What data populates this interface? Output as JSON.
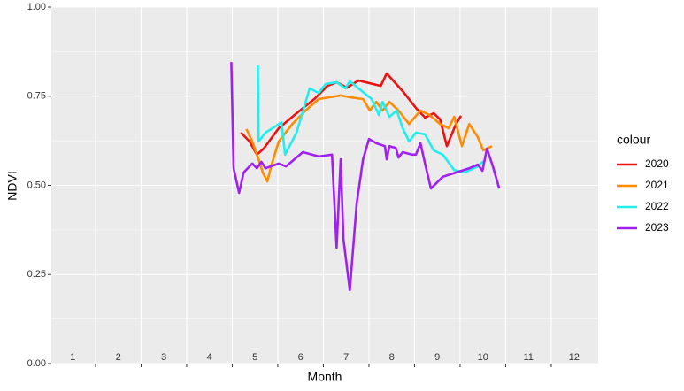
{
  "chart_data": {
    "type": "line",
    "x_label": "Month",
    "y_label": "NDVI",
    "legend_title": "colour",
    "legend_position": "right",
    "xlim": [
      0.53,
      12.53
    ],
    "ylim": [
      0,
      1
    ],
    "x_grid": [
      1.5,
      2.5,
      3.5,
      4.5,
      5.5,
      6.5,
      7.5,
      8.5,
      9.5,
      10.5,
      11.5
    ],
    "yticks": [
      {
        "value": 0,
        "label": "0.00"
      },
      {
        "value": 0.25,
        "label": "0.25"
      },
      {
        "value": 0.5,
        "label": "0.50"
      },
      {
        "value": 0.75,
        "label": "0.75"
      },
      {
        "value": 1,
        "label": "1.00"
      }
    ],
    "y_minor_grid": [
      0.125,
      0.375,
      0.625,
      0.875
    ],
    "month_labels": [
      1,
      2,
      3,
      4,
      5,
      6,
      7,
      8,
      9,
      10,
      11,
      12
    ],
    "grid": true,
    "series": [
      {
        "name": "2020",
        "color": "#ee1111",
        "x": [
          4.69,
          4.88,
          5.04,
          5.19,
          5.52,
          5.91,
          6.3,
          6.59,
          6.79,
          7.02,
          7.27,
          7.76,
          7.89,
          8.24,
          8.53,
          8.73,
          8.92,
          9.06,
          9.21,
          9.41,
          9.52
        ],
        "values": [
          0.648,
          0.623,
          0.586,
          0.603,
          0.66,
          0.702,
          0.742,
          0.779,
          0.789,
          0.774,
          0.794,
          0.779,
          0.814,
          0.764,
          0.717,
          0.69,
          0.702,
          0.685,
          0.61,
          0.672,
          0.695
        ]
      },
      {
        "name": "2021",
        "color": "#ff8c00",
        "x": [
          4.81,
          4.94,
          5.08,
          5.17,
          5.27,
          5.37,
          5.52,
          5.82,
          6.11,
          6.4,
          6.63,
          6.88,
          7.08,
          7.37,
          7.52,
          7.66,
          7.8,
          7.95,
          8.15,
          8.38,
          8.63,
          8.83,
          9.06,
          9.25,
          9.37,
          9.54,
          9.7,
          9.89,
          10.01,
          10.2
        ],
        "values": [
          0.658,
          0.623,
          0.573,
          0.536,
          0.511,
          0.561,
          0.623,
          0.672,
          0.71,
          0.742,
          0.747,
          0.752,
          0.747,
          0.742,
          0.71,
          0.734,
          0.71,
          0.734,
          0.71,
          0.672,
          0.71,
          0.697,
          0.672,
          0.66,
          0.692,
          0.61,
          0.672,
          0.635,
          0.598,
          0.61
        ]
      },
      {
        "name": "2022",
        "color": "#22eeee",
        "x": [
          5.06,
          5.08,
          5.23,
          5.47,
          5.58,
          5.66,
          5.91,
          6.2,
          6.4,
          6.55,
          6.79,
          6.98,
          7.08,
          7.27,
          7.56,
          7.72,
          7.8,
          7.95,
          8.11,
          8.24,
          8.38,
          8.53,
          8.73,
          8.92,
          9.12,
          9.37,
          9.6,
          9.89,
          10.01
        ],
        "values": [
          0.836,
          0.623,
          0.648,
          0.667,
          0.677,
          0.586,
          0.648,
          0.772,
          0.759,
          0.784,
          0.789,
          0.772,
          0.792,
          0.772,
          0.742,
          0.697,
          0.734,
          0.692,
          0.71,
          0.66,
          0.623,
          0.648,
          0.643,
          0.598,
          0.586,
          0.543,
          0.536,
          0.553,
          0.568
        ]
      },
      {
        "name": "2023",
        "color": "#a020f0",
        "x": [
          4.48,
          4.53,
          4.65,
          4.75,
          4.94,
          5.04,
          5.14,
          5.23,
          5.52,
          5.68,
          6.05,
          6.4,
          6.69,
          6.79,
          6.88,
          6.94,
          7.08,
          7.23,
          7.37,
          7.5,
          7.66,
          7.85,
          7.89,
          7.95,
          8.09,
          8.15,
          8.24,
          8.44,
          8.53,
          8.63,
          8.73,
          8.86,
          9.12,
          9.41,
          9.7,
          9.89,
          9.99,
          10.09,
          10.22,
          10.36
        ],
        "values": [
          0.846,
          0.548,
          0.479,
          0.536,
          0.561,
          0.548,
          0.566,
          0.548,
          0.561,
          0.553,
          0.593,
          0.581,
          0.586,
          0.325,
          0.573,
          0.35,
          0.206,
          0.449,
          0.573,
          0.63,
          0.618,
          0.61,
          0.573,
          0.61,
          0.605,
          0.578,
          0.593,
          0.586,
          0.586,
          0.618,
          0.561,
          0.491,
          0.524,
          0.536,
          0.548,
          0.558,
          0.541,
          0.603,
          0.553,
          0.491
        ]
      }
    ]
  }
}
